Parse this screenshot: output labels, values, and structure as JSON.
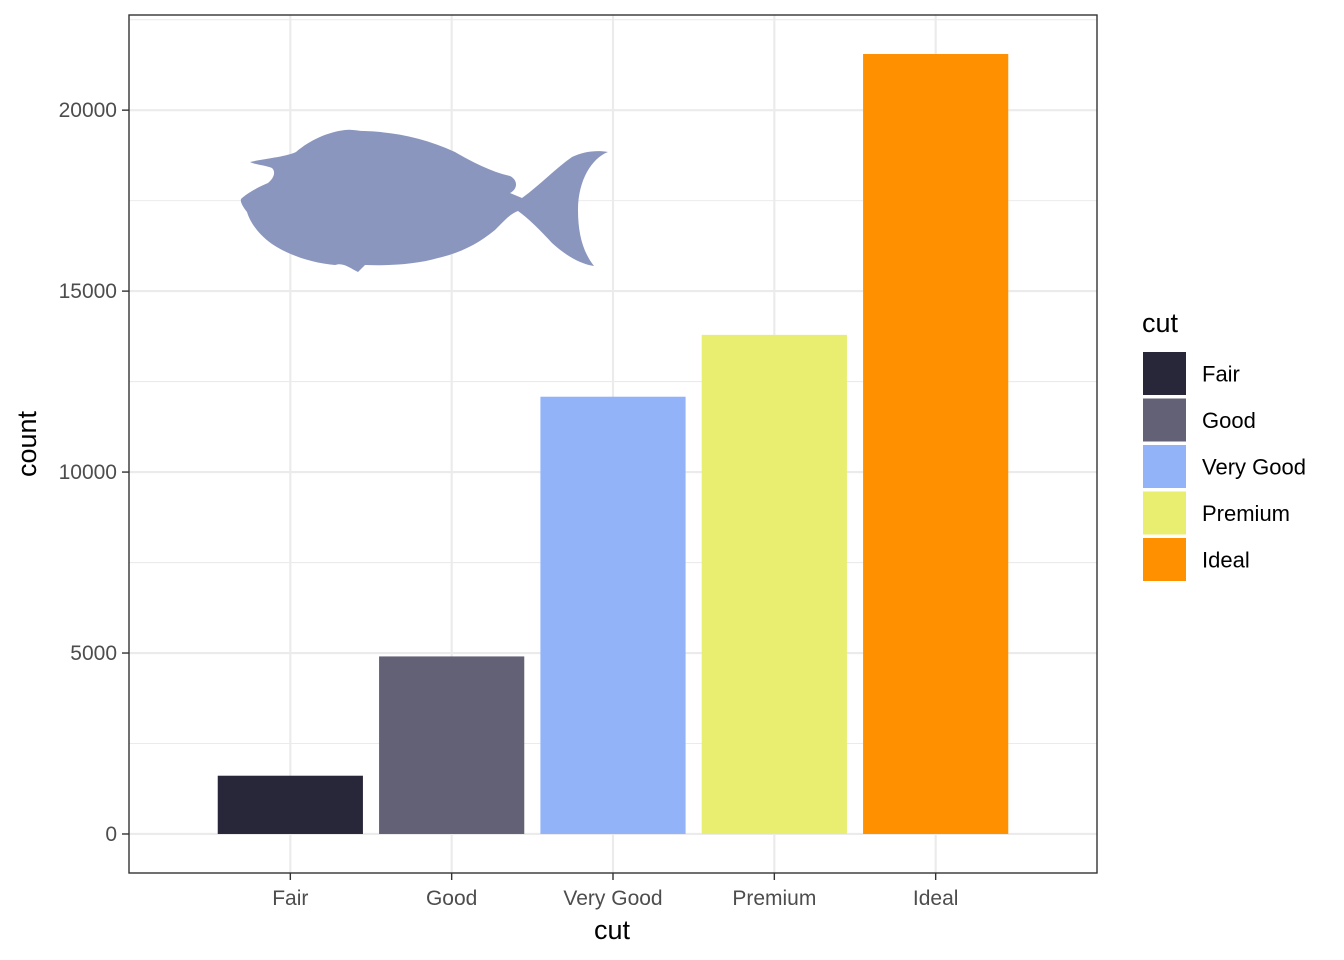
{
  "chart_data": {
    "type": "bar",
    "categories": [
      "Fair",
      "Good",
      "Very Good",
      "Premium",
      "Ideal"
    ],
    "values": [
      1610,
      4906,
      12082,
      13791,
      21551
    ],
    "colors": [
      "#282739",
      "#636175",
      "#93b3f8",
      "#e9ee70",
      "#ff9000"
    ],
    "xlabel": "cut",
    "ylabel": "count",
    "ylim": [
      -1078,
      22629
    ],
    "yticks": [
      0,
      5000,
      10000,
      15000,
      20000
    ],
    "grid": true,
    "legend": {
      "title": "cut",
      "position": "right",
      "entries": [
        "Fair",
        "Good",
        "Very Good",
        "Premium",
        "Ideal"
      ]
    },
    "image_overlay": {
      "icon": "fish-silhouette-icon",
      "color": "#8a96be"
    }
  }
}
